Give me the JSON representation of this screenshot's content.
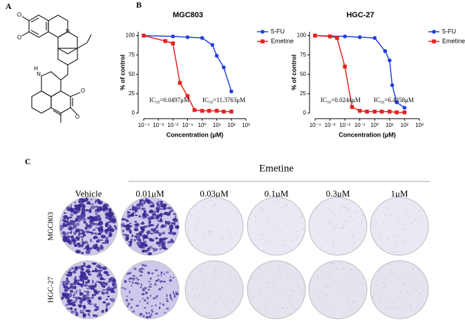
{
  "panel_labels": [
    "A",
    "B",
    "C"
  ],
  "structure": {
    "atoms": [
      "O",
      "O",
      "N",
      "N",
      "H",
      "O",
      "O"
    ]
  },
  "chart_data": [
    {
      "type": "line",
      "title": "MGC803",
      "xlabel": "Concentration (μM)",
      "ylabel": "% of control",
      "log_x": true,
      "xlim": [
        0.0001,
        1000
      ],
      "xticks": [
        {
          "value": 0.0001,
          "label": "10⁻⁴"
        },
        {
          "value": 0.001,
          "label": "10⁻³"
        },
        {
          "value": 0.01,
          "label": "10⁻²"
        },
        {
          "value": 0.1,
          "label": "10⁻¹"
        },
        {
          "value": 1,
          "label": "10⁰"
        },
        {
          "value": 10,
          "label": "10¹"
        },
        {
          "value": 100,
          "label": "10²"
        },
        {
          "value": 1000,
          "label": "10³"
        }
      ],
      "ylim": [
        0,
        105
      ],
      "yticks": [
        0,
        25,
        50,
        75,
        100
      ],
      "legend": "right",
      "series": [
        {
          "name": "5-FU",
          "color": "#1f3fdc",
          "marker": "circle",
          "x": [
            0.0001,
            0.01,
            0.1,
            1,
            5,
            10,
            30,
            100
          ],
          "values": [
            100,
            99,
            98,
            97,
            88,
            74,
            59,
            28
          ]
        },
        {
          "name": "Emetine",
          "color": "#e8211f",
          "marker": "square",
          "x": [
            0.0001,
            0.003,
            0.01,
            0.03,
            0.1,
            0.3,
            1,
            3,
            10,
            30,
            100
          ],
          "values": [
            100,
            93,
            90,
            39,
            22,
            4,
            3,
            3,
            3,
            2,
            2
          ]
        }
      ],
      "annotations": [
        "IC₅₀=0.0497μM",
        "IC₅₀=11.3763μM"
      ]
    },
    {
      "type": "line",
      "title": "HGC-27",
      "xlabel": "Concentration (μM)",
      "ylabel": "% of control",
      "log_x": true,
      "xlim": [
        0.0001,
        1000
      ],
      "xticks": [
        {
          "value": 0.0001,
          "label": "10⁻⁴"
        },
        {
          "value": 0.001,
          "label": "10⁻³"
        },
        {
          "value": 0.01,
          "label": "10⁻²"
        },
        {
          "value": 0.1,
          "label": "10⁻¹"
        },
        {
          "value": 1,
          "label": "10⁰"
        },
        {
          "value": 10,
          "label": "10¹"
        },
        {
          "value": 100,
          "label": "10²"
        },
        {
          "value": 1000,
          "label": "10³"
        }
      ],
      "ylim": [
        0,
        105
      ],
      "yticks": [
        0,
        25,
        50,
        75,
        100
      ],
      "legend": "right",
      "series": [
        {
          "name": "5-FU",
          "color": "#1f3fdc",
          "marker": "circle",
          "x": [
            0.0001,
            0.01,
            0.1,
            1,
            5,
            10,
            15,
            30,
            100
          ],
          "values": [
            100,
            99,
            98,
            97,
            80,
            68,
            36,
            14,
            7
          ]
        },
        {
          "name": "Emetine",
          "color": "#e8211f",
          "marker": "square",
          "x": [
            0.0001,
            0.001,
            0.003,
            0.01,
            0.03,
            0.1,
            0.3,
            1,
            3,
            10,
            30,
            100
          ],
          "values": [
            100,
            99,
            97,
            60,
            8,
            3,
            2,
            2,
            2,
            2,
            1,
            1
          ]
        }
      ],
      "annotations": [
        "IC₅₀=0.0244μM",
        "IC₅₀=6.4358μM"
      ]
    }
  ],
  "colony_assay": {
    "group_label": "Emetine",
    "columns": [
      "Vehicle",
      "0.01μM",
      "0.03μM",
      "0.1μM",
      "0.3μM",
      "1μM"
    ],
    "rows": [
      "MGC803",
      "HGC-27"
    ]
  }
}
